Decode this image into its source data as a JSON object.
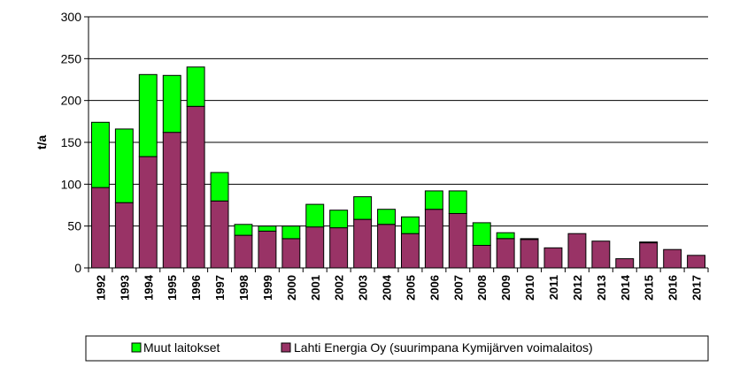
{
  "chart_data": {
    "type": "bar",
    "stacked": true,
    "title": "",
    "xlabel": "",
    "ylabel": "t/a",
    "ylim": [
      0,
      300
    ],
    "yticks": [
      0,
      50,
      100,
      150,
      200,
      250,
      300
    ],
    "grid": true,
    "legend_position": "bottom",
    "categories": [
      "1992",
      "1993",
      "1994",
      "1995",
      "1996",
      "1997",
      "1998",
      "1999",
      "2000",
      "2001",
      "2002",
      "2003",
      "2004",
      "2005",
      "2006",
      "2007",
      "2008",
      "2009",
      "2010",
      "2011",
      "2012",
      "2013",
      "2014",
      "2015",
      "2016",
      "2017"
    ],
    "series": [
      {
        "name": "Lahti Energia Oy (suurimpana Kymijärven voimalaitos)",
        "color": "#993366",
        "values": [
          96,
          78,
          133,
          162,
          193,
          80,
          39,
          44,
          35,
          49,
          48,
          58,
          52,
          41,
          70,
          65,
          27,
          35,
          34,
          24,
          41,
          32,
          11,
          30,
          22,
          15
        ]
      },
      {
        "name": "Muut laitokset",
        "color": "#00ff00",
        "values": [
          78,
          88,
          98,
          68,
          47,
          34,
          13,
          6,
          15,
          27,
          21,
          27,
          18,
          20,
          22,
          27,
          27,
          7,
          1,
          0,
          0,
          0,
          0,
          1,
          0,
          0
        ]
      }
    ],
    "legend_order": [
      "Muut laitokset",
      "Lahti Energia Oy (suurimpana Kymijärven voimalaitos)"
    ]
  }
}
